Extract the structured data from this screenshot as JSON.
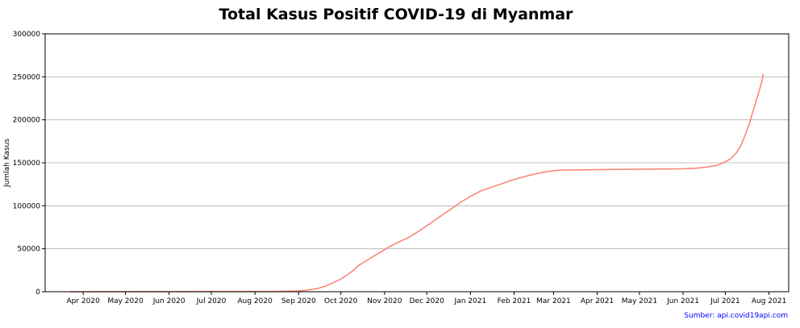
{
  "chart_data": {
    "type": "line",
    "title": "Total Kasus Positif COVID-19 di Myanmar",
    "xlabel": "",
    "ylabel": "Jumlah Kasus",
    "source_note": "Sumber: api.covid19api.com",
    "ylim": [
      0,
      300000
    ],
    "xlim": [
      "2020-03-05",
      "2021-08-15"
    ],
    "yticks": [
      0,
      50000,
      100000,
      150000,
      200000,
      250000,
      300000
    ],
    "xticks": [
      {
        "date": "2020-04-01",
        "label": "Apr 2020"
      },
      {
        "date": "2020-05-01",
        "label": "May 2020"
      },
      {
        "date": "2020-06-01",
        "label": "Jun 2020"
      },
      {
        "date": "2020-07-01",
        "label": "Jul 2020"
      },
      {
        "date": "2020-08-01",
        "label": "Aug 2020"
      },
      {
        "date": "2020-09-01",
        "label": "Sep 2020"
      },
      {
        "date": "2020-10-01",
        "label": "Oct 2020"
      },
      {
        "date": "2020-11-01",
        "label": "Nov 2020"
      },
      {
        "date": "2020-12-01",
        "label": "Dec 2020"
      },
      {
        "date": "2021-01-01",
        "label": "Jan 2021"
      },
      {
        "date": "2021-02-01",
        "label": "Feb 2021"
      },
      {
        "date": "2021-03-01",
        "label": "Mar 2021"
      },
      {
        "date": "2021-04-01",
        "label": "Apr 2021"
      },
      {
        "date": "2021-05-01",
        "label": "May 2021"
      },
      {
        "date": "2021-06-01",
        "label": "Jun 2021"
      },
      {
        "date": "2021-07-01",
        "label": "Jul 2021"
      },
      {
        "date": "2021-08-01",
        "label": "Aug 2021"
      }
    ],
    "grid": {
      "horizontal": true,
      "vertical": false
    },
    "legend": "none",
    "series": [
      {
        "color": "#fa8072",
        "points": [
          [
            "2020-03-23",
            0
          ],
          [
            "2020-04-15",
            100
          ],
          [
            "2020-05-15",
            190
          ],
          [
            "2020-06-15",
            270
          ],
          [
            "2020-07-15",
            340
          ],
          [
            "2020-08-15",
            380
          ],
          [
            "2020-08-31",
            850
          ],
          [
            "2020-09-05",
            1500
          ],
          [
            "2020-09-10",
            2500
          ],
          [
            "2020-09-15",
            4000
          ],
          [
            "2020-09-20",
            6500
          ],
          [
            "2020-09-25",
            10000
          ],
          [
            "2020-09-30",
            14000
          ],
          [
            "2020-10-05",
            19000
          ],
          [
            "2020-10-10",
            25000
          ],
          [
            "2020-10-13",
            30000
          ],
          [
            "2020-10-20",
            37000
          ],
          [
            "2020-10-28",
            45000
          ],
          [
            "2020-11-03",
            51000
          ],
          [
            "2020-11-10",
            57000
          ],
          [
            "2020-11-18",
            63000
          ],
          [
            "2020-11-25",
            70000
          ],
          [
            "2020-12-03",
            79000
          ],
          [
            "2020-12-10",
            87000
          ],
          [
            "2020-12-18",
            96000
          ],
          [
            "2020-12-25",
            104000
          ],
          [
            "2021-01-01",
            111000
          ],
          [
            "2021-01-08",
            117000
          ],
          [
            "2021-01-15",
            121000
          ],
          [
            "2021-01-22",
            125000
          ],
          [
            "2021-01-29",
            129000
          ],
          [
            "2021-02-05",
            132500
          ],
          [
            "2021-02-12",
            135500
          ],
          [
            "2021-02-20",
            138500
          ],
          [
            "2021-02-28",
            140500
          ],
          [
            "2021-03-06",
            141500
          ],
          [
            "2021-03-31",
            142000
          ],
          [
            "2021-04-30",
            142500
          ],
          [
            "2021-05-31",
            143000
          ],
          [
            "2021-06-10",
            143700
          ],
          [
            "2021-06-18",
            145000
          ],
          [
            "2021-06-25",
            147000
          ],
          [
            "2021-07-01",
            151000
          ],
          [
            "2021-07-05",
            155000
          ],
          [
            "2021-07-09",
            162000
          ],
          [
            "2021-07-12",
            170000
          ],
          [
            "2021-07-15",
            182000
          ],
          [
            "2021-07-18",
            195000
          ],
          [
            "2021-07-21",
            212000
          ],
          [
            "2021-07-24",
            228000
          ],
          [
            "2021-07-27",
            245000
          ],
          [
            "2021-07-28",
            253500
          ]
        ]
      }
    ]
  }
}
